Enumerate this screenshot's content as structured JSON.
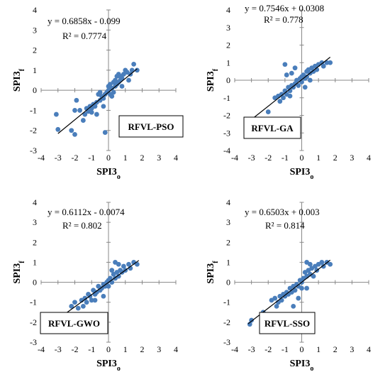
{
  "chart_data": [
    {
      "type": "scatter",
      "model": "RFVL-PSO",
      "equation": "y = 0.6858x - 0.099",
      "r2": "R² = 0.7774",
      "slope": 0.6858,
      "intercept": -0.099,
      "xlabel": "SPI3",
      "xlabel_sub": "o",
      "ylabel": "SPI3",
      "ylabel_sub": "f",
      "xlim": [
        -4,
        4
      ],
      "ylim": [
        -3,
        4
      ],
      "xticks": [
        "-4",
        "-3",
        "-2",
        "-1",
        "0",
        "1",
        "2",
        "3",
        "4"
      ],
      "yticks": [
        "-3",
        "-2",
        "-1",
        "0",
        "1",
        "2",
        "3",
        "4"
      ],
      "trendline_x": [
        -3.0,
        1.7
      ],
      "color": "#4a7ebb",
      "points": [
        [
          -3.1,
          -1.2
        ],
        [
          -3.0,
          -1.95
        ],
        [
          -2.2,
          -2.0
        ],
        [
          -2.0,
          -2.2
        ],
        [
          -2.0,
          -1.0
        ],
        [
          -1.9,
          -0.5
        ],
        [
          -1.7,
          -1.0
        ],
        [
          -1.5,
          -1.5
        ],
        [
          -1.4,
          -1.2
        ],
        [
          -1.3,
          -0.9
        ],
        [
          -1.2,
          -1.05
        ],
        [
          -1.1,
          -0.8
        ],
        [
          -1.0,
          -0.9
        ],
        [
          -0.9,
          -0.7
        ],
        [
          -0.8,
          -0.8
        ],
        [
          -0.7,
          -0.6
        ],
        [
          -0.6,
          -0.2
        ],
        [
          -0.5,
          -0.5
        ],
        [
          -0.4,
          -0.3
        ],
        [
          -0.3,
          -0.4
        ],
        [
          -0.2,
          -0.2
        ],
        [
          -0.1,
          -0.1
        ],
        [
          0.0,
          0.0
        ],
        [
          0.0,
          0.2
        ],
        [
          0.1,
          -0.2
        ],
        [
          0.1,
          0.3
        ],
        [
          0.2,
          0.1
        ],
        [
          0.3,
          0.4
        ],
        [
          0.3,
          -0.1
        ],
        [
          0.4,
          0.5
        ],
        [
          0.4,
          0.2
        ],
        [
          0.5,
          0.7
        ],
        [
          0.5,
          0.3
        ],
        [
          0.6,
          0.8
        ],
        [
          0.7,
          0.5
        ],
        [
          0.7,
          0.7
        ],
        [
          0.8,
          0.6
        ],
        [
          0.9,
          0.8
        ],
        [
          1.0,
          1.0
        ],
        [
          1.1,
          0.9
        ],
        [
          1.2,
          0.5
        ],
        [
          1.3,
          0.8
        ],
        [
          1.4,
          1.0
        ],
        [
          1.5,
          1.3
        ],
        [
          1.7,
          1.0
        ],
        [
          -0.3,
          -0.8
        ],
        [
          -0.7,
          -1.2
        ],
        [
          -0.2,
          -2.1
        ],
        [
          0.2,
          -0.3
        ],
        [
          -0.5,
          -0.1
        ],
        [
          0.6,
          0.4
        ],
        [
          -1.0,
          -1.1
        ],
        [
          0.8,
          0.2
        ]
      ]
    },
    {
      "type": "scatter",
      "model": "RFVL-GA",
      "equation": "y = 0.7546x + 0.0308",
      "r2": "R² = 0.778",
      "slope": 0.7546,
      "intercept": 0.0308,
      "xlabel": "SPI3",
      "xlabel_sub": "o",
      "ylabel": "SPI3",
      "ylabel_sub": "f",
      "xlim": [
        -4,
        4
      ],
      "ylim": [
        -4,
        4
      ],
      "xticks": [
        "-4",
        "-3",
        "-2",
        "-1",
        "0",
        "1",
        "2",
        "3",
        "4"
      ],
      "yticks": [
        "-4",
        "-3",
        "-2",
        "-1",
        "0",
        "1",
        "2",
        "3",
        "4"
      ],
      "trendline_x": [
        -3.1,
        1.7
      ],
      "color": "#4a7ebb",
      "points": [
        [
          -3.0,
          -2.9
        ],
        [
          -2.8,
          -2.6
        ],
        [
          -2.2,
          -2.3
        ],
        [
          -1.9,
          -2.6
        ],
        [
          -2.0,
          -1.8
        ],
        [
          -1.6,
          -1.0
        ],
        [
          -1.4,
          -0.9
        ],
        [
          -1.2,
          -0.8
        ],
        [
          -1.1,
          -1.0
        ],
        [
          -1.0,
          -0.6
        ],
        [
          -0.9,
          -0.8
        ],
        [
          -0.8,
          -0.4
        ],
        [
          -0.7,
          -0.6
        ],
        [
          -0.6,
          -0.3
        ],
        [
          -0.5,
          -0.4
        ],
        [
          -0.4,
          -0.2
        ],
        [
          -0.3,
          0.0
        ],
        [
          -0.2,
          -0.3
        ],
        [
          -0.1,
          0.1
        ],
        [
          0.0,
          0.2
        ],
        [
          0.0,
          -0.1
        ],
        [
          0.1,
          0.3
        ],
        [
          0.2,
          0.1
        ],
        [
          0.3,
          0.5
        ],
        [
          0.3,
          0.2
        ],
        [
          0.4,
          0.6
        ],
        [
          0.5,
          0.4
        ],
        [
          0.6,
          0.7
        ],
        [
          0.7,
          0.5
        ],
        [
          0.8,
          0.8
        ],
        [
          0.9,
          0.6
        ],
        [
          1.0,
          0.9
        ],
        [
          1.2,
          1.0
        ],
        [
          1.3,
          0.8
        ],
        [
          1.5,
          1.0
        ],
        [
          1.7,
          1.0
        ],
        [
          -1.0,
          0.9
        ],
        [
          -0.9,
          0.3
        ],
        [
          -0.6,
          0.4
        ],
        [
          -0.4,
          0.7
        ],
        [
          -1.3,
          -1.2
        ],
        [
          -0.7,
          -0.9
        ],
        [
          0.2,
          -0.4
        ],
        [
          0.5,
          0.0
        ]
      ]
    },
    {
      "type": "scatter",
      "model": "RFVL-GWO",
      "equation": "y = 0.6112x - 0.0074",
      "r2": "R² = 0.802",
      "slope": 0.6112,
      "intercept": -0.0074,
      "xlabel": "SPI3",
      "xlabel_sub": "o",
      "ylabel": "SPI3",
      "ylabel_sub": "f",
      "xlim": [
        -4,
        4
      ],
      "ylim": [
        -3,
        4
      ],
      "xticks": [
        "-4",
        "-3",
        "-2",
        "-1",
        "0",
        "1",
        "2",
        "3",
        "4"
      ],
      "yticks": [
        "-3",
        "-2",
        "-1",
        "0",
        "1",
        "2",
        "3",
        "4"
      ],
      "trendline_x": [
        -3.3,
        1.8
      ],
      "color": "#4a7ebb",
      "points": [
        [
          -3.1,
          -2.1
        ],
        [
          -3.0,
          -2.05
        ],
        [
          -2.2,
          -1.2
        ],
        [
          -2.0,
          -1.0
        ],
        [
          -1.8,
          -1.3
        ],
        [
          -1.6,
          -0.9
        ],
        [
          -1.4,
          -0.8
        ],
        [
          -1.3,
          -1.0
        ],
        [
          -1.2,
          -0.6
        ],
        [
          -1.1,
          -0.7
        ],
        [
          -1.0,
          -0.9
        ],
        [
          -0.9,
          -0.4
        ],
        [
          -0.8,
          -0.6
        ],
        [
          -0.7,
          -0.5
        ],
        [
          -0.6,
          -0.2
        ],
        [
          -0.5,
          -0.4
        ],
        [
          -0.4,
          -0.3
        ],
        [
          -0.3,
          -0.1
        ],
        [
          -0.2,
          -0.2
        ],
        [
          -0.1,
          0.0
        ],
        [
          0.0,
          0.1
        ],
        [
          0.0,
          -0.2
        ],
        [
          0.1,
          0.2
        ],
        [
          0.2,
          0.0
        ],
        [
          0.3,
          0.4
        ],
        [
          0.4,
          0.2
        ],
        [
          0.5,
          0.5
        ],
        [
          0.6,
          0.3
        ],
        [
          0.7,
          0.6
        ],
        [
          0.8,
          0.5
        ],
        [
          0.9,
          0.8
        ],
        [
          1.0,
          0.6
        ],
        [
          1.2,
          0.9
        ],
        [
          1.3,
          0.7
        ],
        [
          1.5,
          1.0
        ],
        [
          1.7,
          0.9
        ],
        [
          0.4,
          1.0
        ],
        [
          0.6,
          0.9
        ],
        [
          -1.5,
          -1.2
        ],
        [
          -0.8,
          -0.9
        ],
        [
          -0.3,
          -0.7
        ],
        [
          0.2,
          0.6
        ]
      ]
    },
    {
      "type": "scatter",
      "model": "RFVL-SSO",
      "equation": "y = 0.6503x + 0.003",
      "r2": "R² = 0.814",
      "slope": 0.6503,
      "intercept": 0.003,
      "xlabel": "SPI3",
      "xlabel_sub": "o",
      "ylabel": "SPI3",
      "ylabel_sub": "f",
      "xlim": [
        -4,
        4
      ],
      "ylim": [
        -3,
        4
      ],
      "xticks": [
        "-4",
        "-3",
        "-2",
        "-1",
        "0",
        "1",
        "2",
        "3",
        "4"
      ],
      "yticks": [
        "-3",
        "-2",
        "-1",
        "0",
        "1",
        "2",
        "3",
        "4"
      ],
      "trendline_x": [
        -3.2,
        1.7
      ],
      "color": "#4a7ebb",
      "points": [
        [
          -3.1,
          -2.1
        ],
        [
          -3.0,
          -1.9
        ],
        [
          -2.3,
          -1.5
        ],
        [
          -2.0,
          -1.7
        ],
        [
          -1.8,
          -0.9
        ],
        [
          -1.6,
          -0.8
        ],
        [
          -1.4,
          -1.0
        ],
        [
          -1.3,
          -0.7
        ],
        [
          -1.2,
          -0.9
        ],
        [
          -1.1,
          -0.6
        ],
        [
          -1.0,
          -0.7
        ],
        [
          -0.9,
          -0.5
        ],
        [
          -0.8,
          -0.6
        ],
        [
          -0.7,
          -0.3
        ],
        [
          -0.6,
          -0.5
        ],
        [
          -0.5,
          -0.2
        ],
        [
          -0.4,
          -0.4
        ],
        [
          -0.3,
          -0.1
        ],
        [
          -0.2,
          -0.2
        ],
        [
          -0.1,
          0.1
        ],
        [
          0.0,
          0.0
        ],
        [
          0.0,
          -0.3
        ],
        [
          0.1,
          0.2
        ],
        [
          0.2,
          0.5
        ],
        [
          0.3,
          0.3
        ],
        [
          0.4,
          0.6
        ],
        [
          0.5,
          0.4
        ],
        [
          0.6,
          0.7
        ],
        [
          0.7,
          0.3
        ],
        [
          0.8,
          0.8
        ],
        [
          0.9,
          0.6
        ],
        [
          1.0,
          0.9
        ],
        [
          1.2,
          1.0
        ],
        [
          1.3,
          0.8
        ],
        [
          1.5,
          1.0
        ],
        [
          1.7,
          0.9
        ],
        [
          0.3,
          1.0
        ],
        [
          0.5,
          0.9
        ],
        [
          -0.5,
          -1.2
        ],
        [
          -0.2,
          -0.8
        ],
        [
          0.3,
          -0.3
        ],
        [
          -1.5,
          -1.2
        ]
      ]
    }
  ]
}
